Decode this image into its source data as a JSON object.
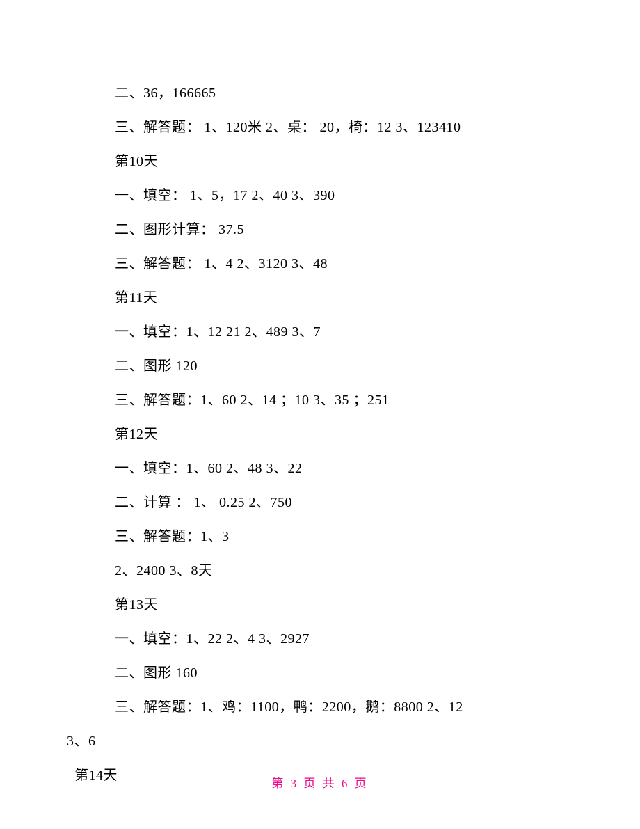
{
  "lines": [
    "二、36，166665",
    "三、解答题：  1、120米 2、桌：  20，椅：12 3、123410",
    "第10天",
    "一、填空：  1、5，17 2、40 3、390",
    "二、图形计算：  37.5",
    "三、解答题：  1、4 2、3120 3、48",
    "第11天",
    "一、填空：1、12 21 2、489 3、7",
    "二、图形 120",
    "三、解答题：1、60 2、14 ；10 3、35 ；251",
    "第12天",
    "一、填空：1、60 2、48 3、22",
    "二、计算 ：  1、 0.25 2、750",
    "三、解答题：1、3",
    "2、2400 3、8天",
    "第13天",
    "一、填空：1、22 2、4 3、2927",
    "二、图形 160",
    "三、解答题：1、鸡：1100，鸭：2200，鹅：8800 2、12"
  ],
  "line_outdent1": "3、6",
  "line_outdent2": "第14天",
  "footer": "第 3 页 共 6 页",
  "colors": {
    "text": "#000000",
    "footer": "#ed0989",
    "background": "#ffffff"
  },
  "font_size_pt": 15,
  "footer_font_size_pt": 13
}
